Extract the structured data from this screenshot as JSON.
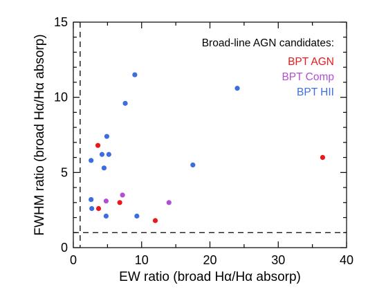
{
  "chart_data": {
    "type": "scatter",
    "xlabel": "EW ratio (broad Hα/Hα absorp)",
    "ylabel": "FWHM ratio (broad Hα/Hα absorp)",
    "xlim": [
      0,
      40
    ],
    "ylim": [
      0,
      15
    ],
    "xticks": [
      0,
      10,
      20,
      30,
      40
    ],
    "yticks": [
      0,
      5,
      10,
      15
    ],
    "grid": false,
    "reference_lines": [
      {
        "orientation": "vertical",
        "value": 1,
        "style": "dashed"
      },
      {
        "orientation": "horizontal",
        "value": 1,
        "style": "dashed"
      }
    ],
    "legend": {
      "title": "Broad-line AGN candidates:",
      "position": "top-right",
      "entries": [
        {
          "label": "BPT AGN",
          "color": "#e8191b"
        },
        {
          "label": "BPT Comp",
          "color": "#b04fd6"
        },
        {
          "label": "BPT HII",
          "color": "#3d6ee0"
        }
      ]
    },
    "series": [
      {
        "name": "BPT AGN",
        "color": "#e8191b",
        "points": [
          [
            3.6,
            6.8
          ],
          [
            3.7,
            2.6
          ],
          [
            6.8,
            3.0
          ],
          [
            12.0,
            1.8
          ],
          [
            36.5,
            6.0
          ]
        ]
      },
      {
        "name": "BPT Comp",
        "color": "#b04fd6",
        "points": [
          [
            4.8,
            3.1
          ],
          [
            7.2,
            3.5
          ],
          [
            14.0,
            3.0
          ]
        ]
      },
      {
        "name": "BPT HII",
        "color": "#3d6ee0",
        "points": [
          [
            9.0,
            11.5
          ],
          [
            7.6,
            9.6
          ],
          [
            24.0,
            10.6
          ],
          [
            4.9,
            7.4
          ],
          [
            4.2,
            6.2
          ],
          [
            5.2,
            6.2
          ],
          [
            2.6,
            5.8
          ],
          [
            4.5,
            5.3
          ],
          [
            17.5,
            5.5
          ],
          [
            2.6,
            3.2
          ],
          [
            2.7,
            2.6
          ],
          [
            4.8,
            2.1
          ],
          [
            9.3,
            2.1
          ]
        ]
      }
    ]
  }
}
